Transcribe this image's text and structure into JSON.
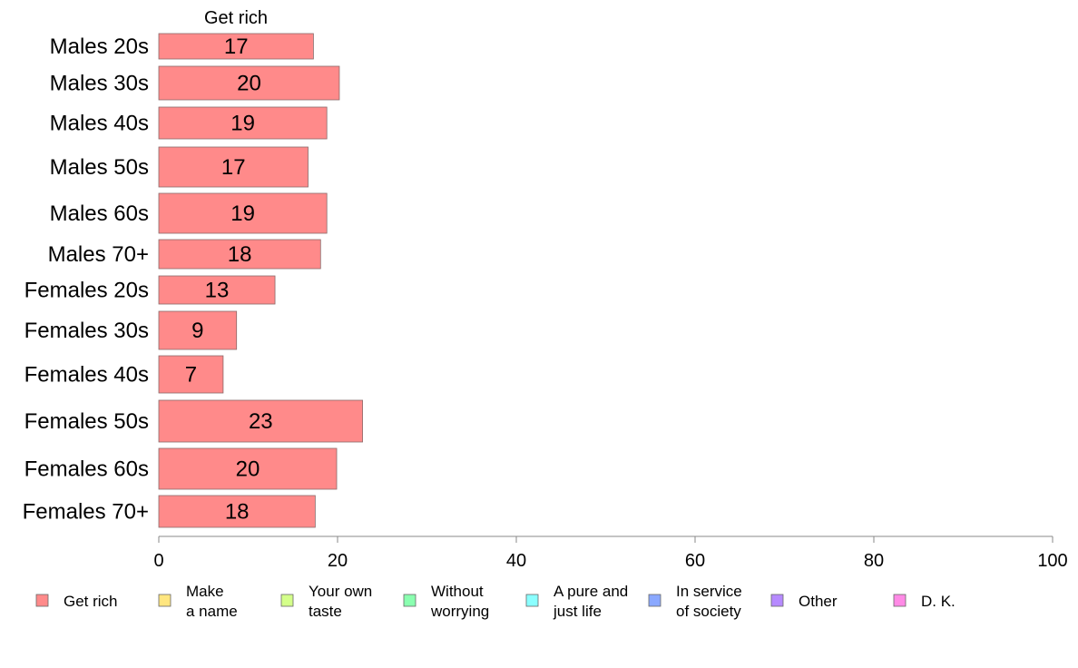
{
  "chart_data": {
    "type": "bar",
    "orientation": "horizontal",
    "title": "Get rich",
    "categories": [
      "Males 20s",
      "Males 30s",
      "Males 40s",
      "Males 50s",
      "Males 60s",
      "Males 70+",
      "Females 20s",
      "Females 30s",
      "Females 40s",
      "Females 50s",
      "Females 60s",
      "Females 70+"
    ],
    "series": [
      {
        "name": "Get rich",
        "values": [
          17.3,
          20.2,
          18.8,
          16.7,
          18.8,
          18.1,
          13.0,
          8.7,
          7.2,
          22.8,
          19.9,
          17.5
        ],
        "labels": [
          "17",
          "20",
          "19",
          "17",
          "19",
          "18",
          "13",
          "9",
          "7",
          "23",
          "20",
          "18"
        ],
        "color": "#ff8a8a"
      }
    ],
    "xlim": [
      0,
      100
    ],
    "xticks": [
      "0",
      "20",
      "40",
      "60",
      "80",
      "100"
    ],
    "legend": {
      "placement": "bottom",
      "items": [
        {
          "lines": [
            "Get rich"
          ],
          "color": "#ff8a8a"
        },
        {
          "lines": [
            "Make",
            "a name"
          ],
          "color": "#ffe680"
        },
        {
          "lines": [
            "Your own",
            "taste"
          ],
          "color": "#d4ff8a"
        },
        {
          "lines": [
            "Without",
            "worrying"
          ],
          "color": "#8affb0"
        },
        {
          "lines": [
            "A pure and",
            "just life"
          ],
          "color": "#8affff"
        },
        {
          "lines": [
            "In service",
            "of society"
          ],
          "color": "#8aa8ff"
        },
        {
          "lines": [
            "Other"
          ],
          "color": "#b68aff"
        },
        {
          "lines": [
            "D. K."
          ],
          "color": "#ff8ae6"
        }
      ]
    }
  }
}
